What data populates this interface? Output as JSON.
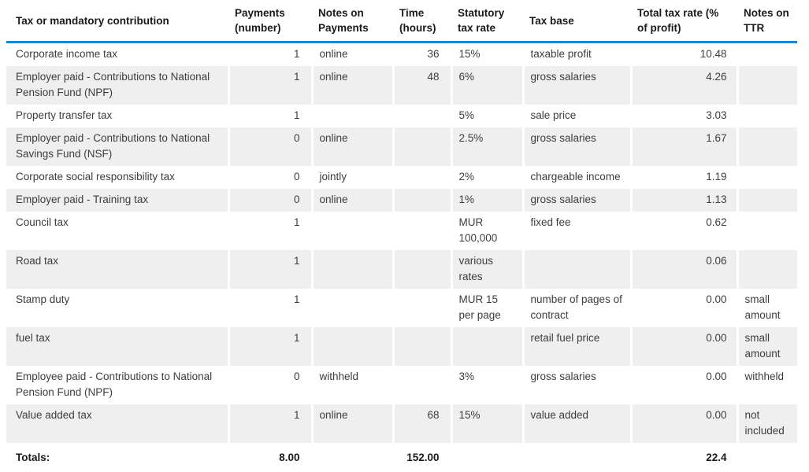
{
  "colors": {
    "accent_blue": "#1c87cf",
    "row_alt_background": "#efefef",
    "body_text": "#3d3d3d",
    "header_text": "#1a1a1a"
  },
  "table": {
    "columns": [
      {
        "key": "tax",
        "label": "Tax or mandatory contribution"
      },
      {
        "key": "payments",
        "label": "Payments (number)"
      },
      {
        "key": "notes-payments",
        "label": "Notes on Payments"
      },
      {
        "key": "time",
        "label": "Time (hours)"
      },
      {
        "key": "statutory-rate",
        "label": "Statutory tax rate"
      },
      {
        "key": "tax-base",
        "label": "Tax base"
      },
      {
        "key": "ttr",
        "label": "Total tax rate (% of profit)"
      },
      {
        "key": "notes-ttr",
        "label": "Notes on TTR"
      }
    ],
    "rows": [
      {
        "cells": [
          "Corporate income tax",
          "1",
          "online",
          "36",
          "15%",
          "taxable profit",
          "10.48",
          ""
        ]
      },
      {
        "cells": [
          "Employer paid - Contributions to National Pension Fund (NPF)",
          "1",
          "online",
          "48",
          "6%",
          "gross salaries",
          "4.26",
          ""
        ]
      },
      {
        "cells": [
          "Property transfer tax",
          "1",
          "",
          "",
          "5%",
          "sale price",
          "3.03",
          ""
        ]
      },
      {
        "cells": [
          "Employer paid - Contributions to National Savings Fund (NSF)",
          "0",
          "online",
          "",
          "2.5%",
          "gross salaries",
          "1.67",
          ""
        ]
      },
      {
        "cells": [
          "Corporate social responsibility tax",
          "0",
          "jointly",
          "",
          "2%",
          "chargeable income",
          "1.19",
          ""
        ]
      },
      {
        "cells": [
          "Employer paid - Training tax",
          "0",
          "online",
          "",
          "1%",
          "gross salaries",
          "1.13",
          ""
        ]
      },
      {
        "cells": [
          "Council tax",
          "1",
          "",
          "",
          "MUR 100,000",
          "fixed fee",
          "0.62",
          ""
        ]
      },
      {
        "cells": [
          "Road tax",
          "1",
          "",
          "",
          "various rates",
          "",
          "0.06",
          ""
        ]
      },
      {
        "cells": [
          "Stamp duty",
          "1",
          "",
          "",
          "MUR 15 per page",
          "number of pages of contract",
          "0.00",
          "small amount"
        ]
      },
      {
        "cells": [
          "fuel tax",
          "1",
          "",
          "",
          "",
          "retail fuel price",
          "0.00",
          "small amount"
        ]
      },
      {
        "cells": [
          "Employee paid - Contributions to National Pension Fund (NPF)",
          "0",
          "withheld",
          "",
          "3%",
          "gross salaries",
          "0.00",
          "withheld"
        ]
      },
      {
        "cells": [
          "Value added tax",
          "1",
          "online",
          "68",
          "15%",
          "value added",
          "0.00",
          "not included"
        ]
      }
    ],
    "totals": {
      "label": "Totals:",
      "payments": "8.00",
      "time": "152.00",
      "ttr": "22.4"
    }
  }
}
